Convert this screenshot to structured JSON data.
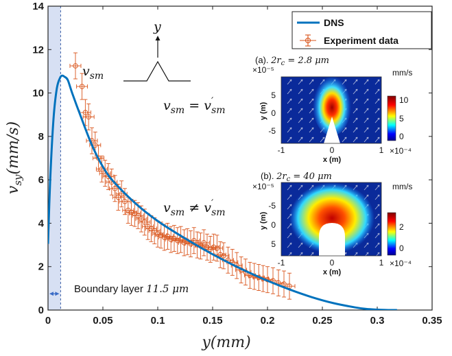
{
  "chart_data": {
    "type": "line",
    "xlabel": "y(mm)",
    "ylabel": "v_sy(mm/s)",
    "xlim": [
      0,
      0.35
    ],
    "ylim": [
      0,
      14
    ],
    "xticks": [
      "0",
      "0.05",
      "0.1",
      "0.15",
      "0.2",
      "0.25",
      "0.3",
      "0.35"
    ],
    "yticks": [
      "0",
      "2",
      "4",
      "6",
      "8",
      "10",
      "12",
      "14"
    ],
    "series": [
      {
        "name": "DNS",
        "color": "#0072BD",
        "x": [
          0,
          0.002,
          0.005,
          0.008,
          0.011,
          0.013,
          0.015,
          0.018,
          0.022,
          0.03,
          0.04,
          0.05,
          0.06,
          0.08,
          0.1,
          0.12,
          0.14,
          0.16,
          0.18,
          0.2,
          0.22,
          0.24,
          0.26,
          0.28,
          0.29,
          0.3,
          0.31,
          0.318
        ],
        "y": [
          3.05,
          6.0,
          8.8,
          10.2,
          10.7,
          10.8,
          10.75,
          10.6,
          10.0,
          8.9,
          7.6,
          6.6,
          5.9,
          4.9,
          4.1,
          3.45,
          2.85,
          2.3,
          1.8,
          1.35,
          0.95,
          0.6,
          0.32,
          0.12,
          0.05,
          0.02,
          0.0,
          0.0
        ]
      },
      {
        "name": "Experiment data",
        "color": "#D95319",
        "x": [
          0.025,
          0.031,
          0.034,
          0.037,
          0.04,
          0.043,
          0.046,
          0.049,
          0.052,
          0.055,
          0.058,
          0.061,
          0.064,
          0.067,
          0.07,
          0.073,
          0.076,
          0.079,
          0.082,
          0.085,
          0.088,
          0.091,
          0.094,
          0.097,
          0.1,
          0.103,
          0.106,
          0.109,
          0.112,
          0.115,
          0.118,
          0.121,
          0.124,
          0.127,
          0.13,
          0.133,
          0.136,
          0.139,
          0.142,
          0.145,
          0.148,
          0.151,
          0.154,
          0.157,
          0.16,
          0.164,
          0.168,
          0.172,
          0.176,
          0.18,
          0.184,
          0.188,
          0.192,
          0.196,
          0.2,
          0.205,
          0.21,
          0.215,
          0.22
        ],
        "y": [
          11.25,
          10.3,
          9.1,
          8.9,
          7.8,
          7.6,
          7.0,
          6.5,
          6.3,
          6.15,
          5.9,
          5.6,
          5.2,
          5.35,
          5.0,
          4.6,
          4.5,
          4.45,
          4.35,
          4.2,
          4.05,
          3.85,
          3.75,
          3.65,
          3.5,
          3.45,
          3.35,
          3.4,
          3.25,
          3.3,
          3.2,
          3.25,
          3.1,
          3.15,
          3.05,
          3.2,
          3.0,
          2.95,
          3.1,
          2.9,
          2.8,
          2.9,
          2.85,
          2.55,
          2.5,
          2.3,
          2.2,
          2.05,
          1.85,
          1.75,
          1.6,
          1.55,
          1.5,
          1.45,
          1.4,
          1.35,
          1.25,
          1.2,
          1.1
        ],
        "yerr": 0.6,
        "xerr": 0.005
      }
    ],
    "legend": {
      "position": "top-right",
      "entries": [
        "DNS",
        "Experiment data"
      ]
    },
    "boundary_layer": {
      "x_end": 0.0115,
      "label": "Boundary layer 11.5 μm"
    },
    "annotations": {
      "peak_label": "v_sm",
      "eq_label": "v_sm = v'_sm",
      "neq_label": "v_sm ≠ v'_sm",
      "axis_symbol": "y"
    },
    "insets": [
      {
        "title": "(a). 2r_c = 2.8 μm",
        "unit_label": "mm/s",
        "y_exponent": "×10⁻⁵",
        "x_exponent": "×10⁻⁴",
        "xlabel": "x (m)",
        "ylabel": "y (m)",
        "yticks": [
          "5",
          "0",
          "-5"
        ],
        "xticks": [
          "-1",
          "0",
          "1"
        ],
        "colorbar_ticks": [
          "10",
          "5",
          "0"
        ]
      },
      {
        "title": "(b). 2r_c = 40 μm",
        "unit_label": "mm/s",
        "y_exponent": "×10⁻⁵",
        "x_exponent": "×10⁻⁴",
        "xlabel": "x (m)",
        "ylabel": "y (m)",
        "yticks": [
          "-5",
          "0",
          "5"
        ],
        "xticks": [
          "-1",
          "0",
          "1"
        ],
        "colorbar_ticks": [
          "2",
          "0"
        ]
      }
    ]
  }
}
